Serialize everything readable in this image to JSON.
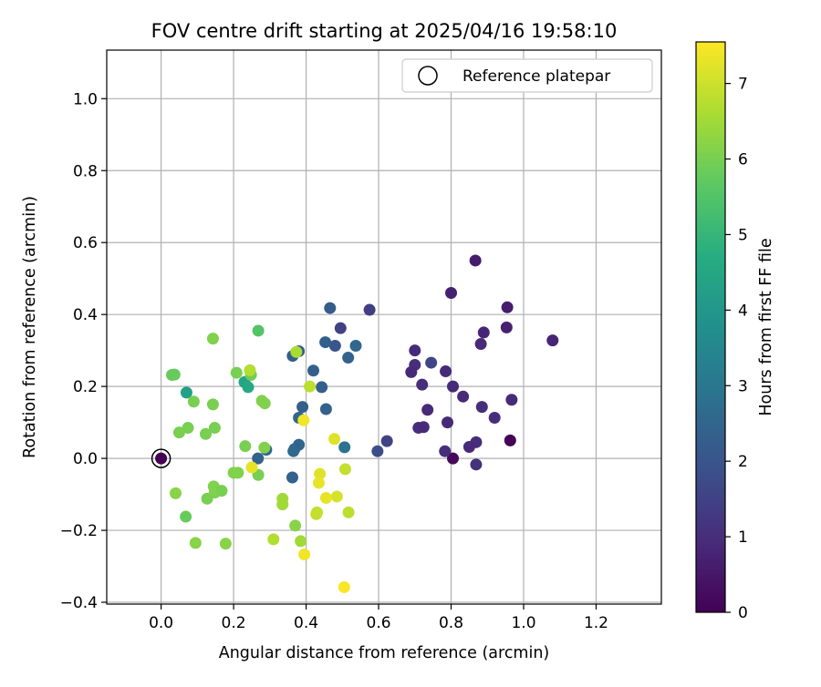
{
  "chart_data": {
    "type": "scatter",
    "title": "FOV centre drift starting at 2025/04/16 19:58:10",
    "xlabel": "Angular distance from reference (arcmin)",
    "ylabel": "Rotation from reference (arcmin)",
    "xlim": [
      -0.15,
      1.38
    ],
    "ylim": [
      -0.405,
      1.135
    ],
    "xticks": [
      "0.0",
      "0.2",
      "0.4",
      "0.6",
      "0.8",
      "1.0",
      "1.2"
    ],
    "xtick_values": [
      0,
      0.2,
      0.4,
      0.6,
      0.8,
      1.0,
      1.2
    ],
    "yticks": [
      "−0.4",
      "−0.2",
      "0.0",
      "0.2",
      "0.4",
      "0.6",
      "0.8",
      "1.0"
    ],
    "ytick_values": [
      -0.4,
      -0.2,
      0,
      0.2,
      0.4,
      0.6,
      0.8,
      1.0
    ],
    "grid": true,
    "legend": {
      "label": "Reference platepar",
      "position": "top-right"
    },
    "colorbar": {
      "label": "Hours from first FF file",
      "colormap": "viridis",
      "range": [
        0,
        7.55
      ],
      "ticks": [
        "0",
        "1",
        "2",
        "3",
        "4",
        "5",
        "6",
        "7"
      ],
      "tick_values": [
        0,
        1,
        2,
        3,
        4,
        5,
        6,
        7
      ]
    },
    "reference_point": {
      "x": 0.0,
      "y": 0.0
    },
    "series": [
      {
        "points": [
          {
            "x": 0.0,
            "y": 0.0,
            "c": 0.0
          },
          {
            "x": 0.963,
            "y": 0.05,
            "c": 0.05
          },
          {
            "x": 0.805,
            "y": 0.0,
            "c": 0.2
          },
          {
            "x": 0.867,
            "y": 0.55,
            "c": 0.6
          },
          {
            "x": 0.8,
            "y": 0.46,
            "c": 0.7
          },
          {
            "x": 0.955,
            "y": 0.42,
            "c": 0.6
          },
          {
            "x": 0.953,
            "y": 0.364,
            "c": 0.7
          },
          {
            "x": 1.08,
            "y": 0.328,
            "c": 0.8
          },
          {
            "x": 0.89,
            "y": 0.35,
            "c": 0.8
          },
          {
            "x": 0.882,
            "y": 0.318,
            "c": 0.9
          },
          {
            "x": 0.7,
            "y": 0.3,
            "c": 0.9
          },
          {
            "x": 0.7,
            "y": 0.26,
            "c": 1.0
          },
          {
            "x": 0.69,
            "y": 0.24,
            "c": 0.9
          },
          {
            "x": 0.785,
            "y": 0.242,
            "c": 0.9
          },
          {
            "x": 0.72,
            "y": 0.205,
            "c": 1.0
          },
          {
            "x": 0.805,
            "y": 0.2,
            "c": 0.9
          },
          {
            "x": 0.833,
            "y": 0.172,
            "c": 0.9
          },
          {
            "x": 0.967,
            "y": 0.163,
            "c": 0.9
          },
          {
            "x": 0.885,
            "y": 0.143,
            "c": 1.0
          },
          {
            "x": 0.735,
            "y": 0.135,
            "c": 0.9
          },
          {
            "x": 0.92,
            "y": 0.113,
            "c": 1.0
          },
          {
            "x": 0.79,
            "y": 0.1,
            "c": 0.9
          },
          {
            "x": 0.71,
            "y": 0.085,
            "c": 1.0
          },
          {
            "x": 0.724,
            "y": 0.087,
            "c": 0.9
          },
          {
            "x": 0.869,
            "y": 0.045,
            "c": 1.0
          },
          {
            "x": 0.85,
            "y": 0.032,
            "c": 0.9
          },
          {
            "x": 0.783,
            "y": 0.02,
            "c": 1.0
          },
          {
            "x": 0.869,
            "y": -0.017,
            "c": 1.1
          },
          {
            "x": 0.745,
            "y": 0.266,
            "c": 1.6
          },
          {
            "x": 0.575,
            "y": 0.413,
            "c": 1.4
          },
          {
            "x": 0.495,
            "y": 0.362,
            "c": 1.5
          },
          {
            "x": 0.623,
            "y": 0.048,
            "c": 1.5
          },
          {
            "x": 0.597,
            "y": 0.02,
            "c": 1.8
          },
          {
            "x": 0.466,
            "y": 0.418,
            "c": 2.2
          },
          {
            "x": 0.48,
            "y": 0.313,
            "c": 2.0
          },
          {
            "x": 0.453,
            "y": 0.323,
            "c": 2.3
          },
          {
            "x": 0.537,
            "y": 0.313,
            "c": 2.5
          },
          {
            "x": 0.516,
            "y": 0.28,
            "c": 2.4
          },
          {
            "x": 0.38,
            "y": 0.298,
            "c": 2.2
          },
          {
            "x": 0.363,
            "y": 0.285,
            "c": 2.3
          },
          {
            "x": 0.42,
            "y": 0.244,
            "c": 2.3
          },
          {
            "x": 0.443,
            "y": 0.198,
            "c": 2.3
          },
          {
            "x": 0.39,
            "y": 0.143,
            "c": 2.3
          },
          {
            "x": 0.455,
            "y": 0.137,
            "c": 2.4
          },
          {
            "x": 0.38,
            "y": 0.113,
            "c": 2.5
          },
          {
            "x": 0.38,
            "y": 0.038,
            "c": 2.5
          },
          {
            "x": 0.368,
            "y": 0.026,
            "c": 2.4
          },
          {
            "x": 0.365,
            "y": 0.02,
            "c": 2.6
          },
          {
            "x": 0.506,
            "y": 0.031,
            "c": 2.9
          },
          {
            "x": 0.29,
            "y": 0.024,
            "c": 2.5
          },
          {
            "x": 0.267,
            "y": 0.0,
            "c": 2.4
          },
          {
            "x": 0.362,
            "y": -0.053,
            "c": 2.4
          },
          {
            "x": 0.07,
            "y": 0.183,
            "c": 4.3
          },
          {
            "x": 0.23,
            "y": 0.212,
            "c": 4.4
          },
          {
            "x": 0.24,
            "y": 0.198,
            "c": 4.6
          },
          {
            "x": 0.268,
            "y": 0.355,
            "c": 5.5
          },
          {
            "x": 0.03,
            "y": 0.232,
            "c": 5.8
          },
          {
            "x": 0.037,
            "y": 0.233,
            "c": 5.8
          },
          {
            "x": 0.208,
            "y": 0.238,
            "c": 6.0
          },
          {
            "x": 0.248,
            "y": 0.232,
            "c": 5.9
          },
          {
            "x": 0.09,
            "y": 0.158,
            "c": 6.0
          },
          {
            "x": 0.143,
            "y": 0.15,
            "c": 6.0
          },
          {
            "x": 0.278,
            "y": 0.16,
            "c": 6.1
          },
          {
            "x": 0.286,
            "y": 0.153,
            "c": 6.1
          },
          {
            "x": 0.143,
            "y": 0.333,
            "c": 6.1
          },
          {
            "x": 0.074,
            "y": 0.085,
            "c": 6.0
          },
          {
            "x": 0.05,
            "y": 0.072,
            "c": 6.0
          },
          {
            "x": 0.123,
            "y": 0.068,
            "c": 6.0
          },
          {
            "x": 0.148,
            "y": 0.085,
            "c": 6.0
          },
          {
            "x": 0.232,
            "y": 0.034,
            "c": 6.0
          },
          {
            "x": 0.285,
            "y": 0.03,
            "c": 6.1
          },
          {
            "x": 0.268,
            "y": -0.046,
            "c": 6.0
          },
          {
            "x": 0.2,
            "y": -0.04,
            "c": 6.1
          },
          {
            "x": 0.212,
            "y": -0.04,
            "c": 6.1
          },
          {
            "x": 0.145,
            "y": -0.078,
            "c": 6.1
          },
          {
            "x": 0.148,
            "y": -0.095,
            "c": 6.1
          },
          {
            "x": 0.167,
            "y": -0.09,
            "c": 6.0
          },
          {
            "x": 0.127,
            "y": -0.112,
            "c": 6.0
          },
          {
            "x": 0.04,
            "y": -0.097,
            "c": 6.2
          },
          {
            "x": 0.068,
            "y": -0.162,
            "c": 5.8
          },
          {
            "x": 0.095,
            "y": -0.235,
            "c": 6.2
          },
          {
            "x": 0.178,
            "y": -0.237,
            "c": 6.2
          },
          {
            "x": 0.37,
            "y": -0.187,
            "c": 6.2
          },
          {
            "x": 0.335,
            "y": -0.112,
            "c": 6.5
          },
          {
            "x": 0.335,
            "y": -0.128,
            "c": 6.5
          },
          {
            "x": 0.31,
            "y": -0.225,
            "c": 6.7
          },
          {
            "x": 0.385,
            "y": -0.23,
            "c": 6.5
          },
          {
            "x": 0.245,
            "y": 0.245,
            "c": 6.7
          },
          {
            "x": 0.373,
            "y": 0.296,
            "c": 6.6
          },
          {
            "x": 0.41,
            "y": 0.2,
            "c": 6.8
          },
          {
            "x": 0.428,
            "y": -0.155,
            "c": 6.9
          },
          {
            "x": 0.43,
            "y": -0.15,
            "c": 6.9
          },
          {
            "x": 0.517,
            "y": -0.15,
            "c": 6.8
          },
          {
            "x": 0.508,
            "y": -0.03,
            "c": 6.9
          },
          {
            "x": 0.485,
            "y": -0.106,
            "c": 7.1
          },
          {
            "x": 0.455,
            "y": -0.11,
            "c": 7.3
          },
          {
            "x": 0.438,
            "y": -0.043,
            "c": 7.2
          },
          {
            "x": 0.435,
            "y": -0.068,
            "c": 7.3
          },
          {
            "x": 0.478,
            "y": 0.054,
            "c": 7.2
          },
          {
            "x": 0.393,
            "y": 0.106,
            "c": 7.4
          },
          {
            "x": 0.25,
            "y": -0.025,
            "c": 7.3
          },
          {
            "x": 0.395,
            "y": -0.267,
            "c": 7.4
          },
          {
            "x": 0.505,
            "y": -0.358,
            "c": 7.5
          }
        ]
      }
    ]
  }
}
